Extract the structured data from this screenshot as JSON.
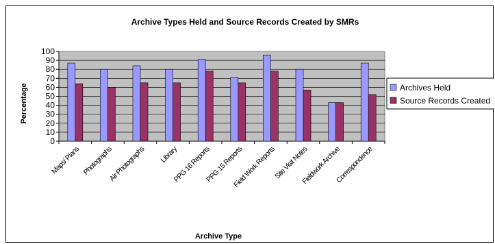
{
  "chart_data": {
    "type": "bar",
    "title": "Archive Types Held and Source Records Created by SMRs",
    "xlabel": "Archive Type",
    "ylabel": "Percentage",
    "ylim": [
      0,
      100
    ],
    "yticks": [
      0,
      10,
      20,
      30,
      40,
      50,
      60,
      70,
      80,
      90,
      100
    ],
    "grid": true,
    "plot_background": "#C0C0C0",
    "legend_position": "right",
    "categories": [
      "Maps/ Plans",
      "Photographs",
      "Air Photographs",
      "Library",
      "PPG 16 Reports",
      "PPG 15 Reports",
      "Field Work Reports",
      "Site Visit Notes",
      "Fieldwork Archive",
      "Correspondence"
    ],
    "series": [
      {
        "name": "Archives Held",
        "color": "#9999FF",
        "values": [
          87,
          80,
          84,
          80,
          91,
          71,
          96,
          80,
          43,
          87
        ]
      },
      {
        "name": "Source Records Created",
        "color": "#993366",
        "values": [
          64,
          60,
          65,
          65,
          78,
          65,
          78,
          57,
          43,
          52
        ]
      }
    ]
  }
}
